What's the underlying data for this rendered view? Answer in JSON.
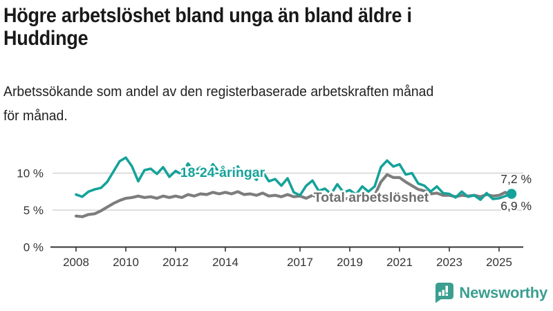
{
  "title": {
    "line1": "Högre arbetslöshet bland unga än bland äldre i",
    "line2": "Huddinge"
  },
  "subtitle": {
    "line1": "Arbetssökande som andel av den registerbaserade arbetskraften månad",
    "line2": "för månad."
  },
  "footer": {
    "brand": "Newsworthy",
    "brand_color": "#3B9E8F"
  },
  "chart_data": {
    "type": "line",
    "title": "Högre arbetslöshet bland unga än bland äldre i Huddinge",
    "subtitle": "Arbetssökande som andel av den registerbaserade arbetskraften månad för månad.",
    "unit": "%",
    "x_start": 2008,
    "x_step": 0.25,
    "x_ticks": [
      2008,
      2010,
      2012,
      2014,
      2017,
      2019,
      2021,
      2023,
      2025
    ],
    "y_ticks": [
      0,
      5,
      10
    ],
    "y_tick_labels": [
      "0 %",
      "5 %",
      "10 %"
    ],
    "ylim": [
      0,
      14.3
    ],
    "grid": "horizontal",
    "legend": "inline-labels",
    "axis_color": "#333333",
    "gridline_color": "#cccccc",
    "series": [
      {
        "name": "18-24-åringar",
        "color": "#15A29A",
        "end_label": "7,2 %",
        "end_value": 7.2,
        "values": [
          7.1,
          6.8,
          7.5,
          7.8,
          8.0,
          8.8,
          10.2,
          11.6,
          12.1,
          10.9,
          8.9,
          10.4,
          10.6,
          9.9,
          10.8,
          9.5,
          10.3,
          9.8,
          11.3,
          10.2,
          10.8,
          10.0,
          11.2,
          10.1,
          10.5,
          9.6,
          10.9,
          9.5,
          9.9,
          9.1,
          10.2,
          8.9,
          9.2,
          8.3,
          9.3,
          7.4,
          7.0,
          8.3,
          9.0,
          7.6,
          7.9,
          7.2,
          8.5,
          7.4,
          7.7,
          7.1,
          8.2,
          7.5,
          8.2,
          10.8,
          11.7,
          10.9,
          11.2,
          9.8,
          10.0,
          8.6,
          8.3,
          7.5,
          8.2,
          7.3,
          7.2,
          6.7,
          7.5,
          6.8,
          7.0,
          6.4,
          7.3,
          6.5,
          6.6,
          6.9,
          7.2
        ]
      },
      {
        "name": "Total arbetslöshet",
        "color": "#7D7D7D",
        "end_label": "6,9 %",
        "end_value": 6.9,
        "values": [
          4.2,
          4.1,
          4.4,
          4.5,
          4.9,
          5.4,
          5.9,
          6.3,
          6.6,
          6.7,
          6.9,
          6.7,
          6.8,
          6.6,
          6.9,
          6.7,
          6.9,
          6.7,
          7.1,
          6.9,
          7.2,
          7.1,
          7.4,
          7.2,
          7.4,
          7.2,
          7.5,
          7.1,
          7.2,
          7.0,
          7.3,
          6.9,
          7.0,
          6.8,
          7.1,
          6.8,
          6.9,
          6.6,
          7.0,
          6.7,
          6.7,
          6.5,
          6.8,
          6.5,
          6.6,
          6.4,
          6.8,
          6.7,
          7.0,
          8.8,
          9.8,
          9.4,
          9.4,
          8.8,
          8.3,
          7.8,
          7.6,
          7.2,
          7.3,
          7.0,
          7.0,
          6.8,
          7.0,
          6.9,
          7.0,
          6.8,
          7.1,
          6.9,
          7.0,
          7.4,
          6.9
        ]
      }
    ]
  }
}
